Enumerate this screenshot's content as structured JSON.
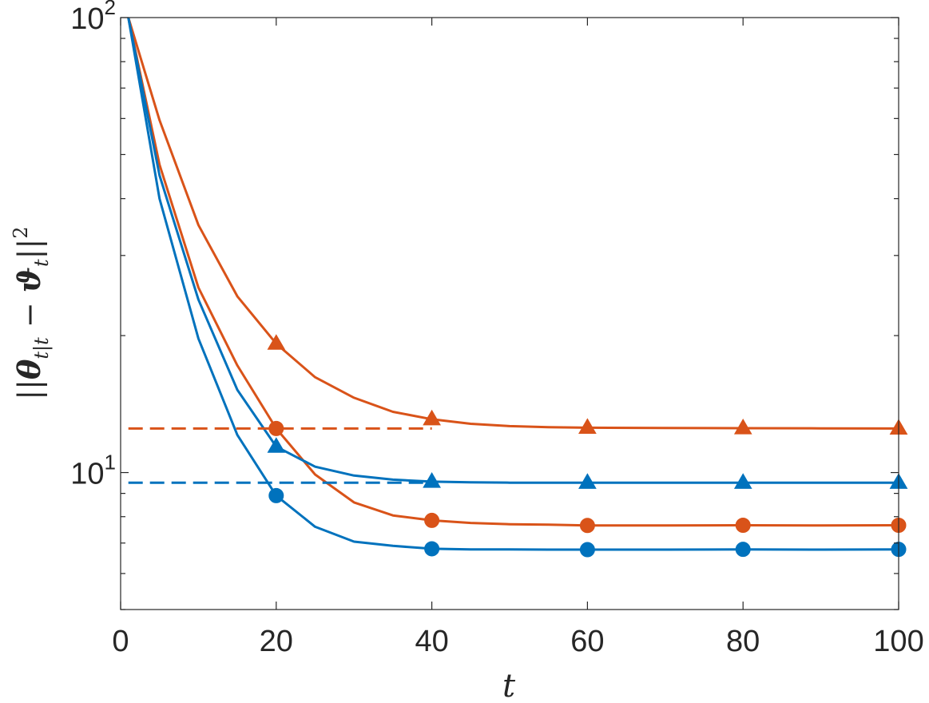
{
  "chart_data": {
    "type": "line",
    "title": "",
    "xlabel": "t",
    "ylabel": "||θ_{t|t} − ϑ_t||^2",
    "xlim": [
      0,
      100
    ],
    "ylim": [
      5,
      100
    ],
    "yscale": "log",
    "grid": false,
    "x_ticks": [
      0,
      20,
      40,
      60,
      80,
      100
    ],
    "y_ticks": [
      {
        "value": 10,
        "base": "10",
        "exp": "1"
      },
      {
        "value": 100,
        "base": "10",
        "exp": "2"
      }
    ],
    "series": [
      {
        "color": "#D95319",
        "style": "solid",
        "marker": "triangle",
        "x": [
          1,
          5,
          10,
          15,
          20,
          25,
          30,
          35,
          40,
          45,
          50,
          55,
          60,
          70,
          80,
          90,
          100
        ],
        "y": [
          100,
          59.5,
          35,
          24.4,
          19.2,
          16.2,
          14.6,
          13.6,
          13.1,
          12.8,
          12.65,
          12.58,
          12.55,
          12.53,
          12.52,
          12.51,
          12.5
        ],
        "marker_x": [
          20,
          40,
          60,
          80,
          100
        ],
        "marker_y": [
          19.2,
          13.1,
          12.55,
          12.52,
          12.5
        ]
      },
      {
        "color": "#D95319",
        "style": "solid",
        "marker": "circle",
        "x": [
          1,
          5,
          10,
          15,
          20,
          25,
          30,
          35,
          40,
          45,
          50,
          55,
          60,
          70,
          80,
          90,
          100
        ],
        "y": [
          100,
          47.5,
          25.5,
          17.2,
          12.5,
          9.9,
          8.6,
          8.05,
          7.85,
          7.75,
          7.7,
          7.68,
          7.65,
          7.65,
          7.66,
          7.65,
          7.66
        ],
        "marker_x": [
          20,
          40,
          60,
          80,
          100
        ],
        "marker_y": [
          12.5,
          7.85,
          7.65,
          7.66,
          7.66
        ]
      },
      {
        "color": "#0072BD",
        "style": "solid",
        "marker": "triangle",
        "x": [
          1,
          5,
          10,
          15,
          20,
          25,
          30,
          35,
          40,
          45,
          50,
          55,
          60,
          70,
          80,
          90,
          100
        ],
        "y": [
          100,
          45,
          24,
          15.2,
          11.4,
          10.3,
          9.85,
          9.65,
          9.55,
          9.52,
          9.5,
          9.5,
          9.5,
          9.5,
          9.5,
          9.5,
          9.5
        ],
        "marker_x": [
          20,
          40,
          60,
          80,
          100
        ],
        "marker_y": [
          11.4,
          9.55,
          9.5,
          9.5,
          9.5
        ]
      },
      {
        "color": "#0072BD",
        "style": "solid",
        "marker": "circle",
        "x": [
          1,
          5,
          10,
          15,
          20,
          25,
          30,
          35,
          40,
          45,
          50,
          55,
          60,
          70,
          80,
          90,
          100
        ],
        "y": [
          100,
          40,
          19.7,
          12.1,
          8.9,
          7.6,
          7.05,
          6.9,
          6.8,
          6.78,
          6.78,
          6.77,
          6.77,
          6.77,
          6.78,
          6.77,
          6.78
        ],
        "marker_x": [
          20,
          40,
          60,
          80,
          100
        ],
        "marker_y": [
          8.9,
          6.8,
          6.77,
          6.78,
          6.78
        ]
      },
      {
        "color": "#D95319",
        "style": "dashed",
        "marker": "none",
        "x": [
          1,
          40
        ],
        "y": [
          12.5,
          12.5
        ]
      },
      {
        "color": "#0072BD",
        "style": "dashed",
        "marker": "none",
        "x": [
          1,
          40
        ],
        "y": [
          9.5,
          9.5
        ]
      }
    ]
  }
}
